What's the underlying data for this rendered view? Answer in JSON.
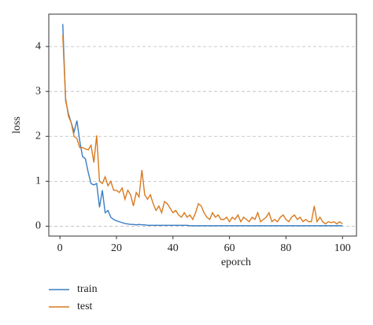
{
  "chart_data": {
    "type": "line",
    "xlabel": "eporch",
    "ylabel": "loss",
    "x": [
      1,
      2,
      3,
      4,
      5,
      6,
      7,
      8,
      9,
      10,
      11,
      12,
      13,
      14,
      15,
      16,
      17,
      18,
      19,
      20,
      21,
      22,
      23,
      24,
      25,
      26,
      27,
      28,
      29,
      30,
      31,
      32,
      33,
      34,
      35,
      36,
      37,
      38,
      39,
      40,
      41,
      42,
      43,
      44,
      45,
      46,
      47,
      48,
      49,
      50,
      51,
      52,
      53,
      54,
      55,
      56,
      57,
      58,
      59,
      60,
      61,
      62,
      63,
      64,
      65,
      66,
      67,
      68,
      69,
      70,
      71,
      72,
      73,
      74,
      75,
      76,
      77,
      78,
      79,
      80,
      81,
      82,
      83,
      84,
      85,
      86,
      87,
      88,
      89,
      90,
      91,
      92,
      93,
      94,
      95,
      96,
      97,
      98,
      99,
      100
    ],
    "series": [
      {
        "name": "train",
        "color": "#3a7dc4",
        "values": [
          4.5,
          2.8,
          2.5,
          2.3,
          2.1,
          2.35,
          1.9,
          1.55,
          1.5,
          1.2,
          0.95,
          0.92,
          0.95,
          0.42,
          0.8,
          0.3,
          0.35,
          0.2,
          0.15,
          0.12,
          0.1,
          0.08,
          0.06,
          0.05,
          0.04,
          0.04,
          0.03,
          0.04,
          0.03,
          0.03,
          0.02,
          0.02,
          0.02,
          0.02,
          0.02,
          0.02,
          0.02,
          0.02,
          0.02,
          0.02,
          0.02,
          0.02,
          0.02,
          0.02,
          0.02,
          0.01,
          0.01,
          0.01,
          0.01,
          0.01,
          0.01,
          0.01,
          0.01,
          0.01,
          0.01,
          0.01,
          0.01,
          0.01,
          0.01,
          0.01,
          0.01,
          0.01,
          0.01,
          0.01,
          0.01,
          0.01,
          0.01,
          0.01,
          0.01,
          0.01,
          0.01,
          0.01,
          0.01,
          0.01,
          0.01,
          0.01,
          0.01,
          0.01,
          0.01,
          0.01,
          0.01,
          0.01,
          0.01,
          0.01,
          0.01,
          0.01,
          0.01,
          0.01,
          0.01,
          0.01,
          0.01,
          0.01,
          0.01,
          0.01,
          0.01,
          0.01,
          0.01,
          0.01,
          0.01,
          0.01
        ]
      },
      {
        "name": "test",
        "color": "#d97a1f",
        "values": [
          4.25,
          2.85,
          2.45,
          2.3,
          2.0,
          1.95,
          1.75,
          1.75,
          1.72,
          1.7,
          1.8,
          1.42,
          2.02,
          1.0,
          0.95,
          1.1,
          0.9,
          1.0,
          0.8,
          0.8,
          0.75,
          0.85,
          0.6,
          0.8,
          0.7,
          0.45,
          0.75,
          0.65,
          1.25,
          0.7,
          0.6,
          0.7,
          0.5,
          0.35,
          0.45,
          0.3,
          0.55,
          0.5,
          0.4,
          0.3,
          0.35,
          0.25,
          0.2,
          0.3,
          0.2,
          0.25,
          0.15,
          0.3,
          0.5,
          0.45,
          0.3,
          0.2,
          0.15,
          0.3,
          0.2,
          0.25,
          0.15,
          0.15,
          0.2,
          0.1,
          0.2,
          0.15,
          0.25,
          0.1,
          0.2,
          0.15,
          0.1,
          0.2,
          0.15,
          0.3,
          0.1,
          0.15,
          0.2,
          0.3,
          0.1,
          0.15,
          0.1,
          0.2,
          0.25,
          0.15,
          0.1,
          0.2,
          0.25,
          0.15,
          0.2,
          0.1,
          0.15,
          0.1,
          0.1,
          0.45,
          0.1,
          0.2,
          0.1,
          0.05,
          0.1,
          0.08,
          0.1,
          0.05,
          0.1,
          0.05
        ]
      }
    ],
    "xlim": [
      -3.95,
      104.95
    ],
    "xticks": [
      0,
      20,
      40,
      60,
      80,
      100
    ],
    "ylim": [
      -0.22,
      4.72
    ],
    "yticks": [
      0,
      1,
      2,
      3,
      4
    ],
    "grid": true,
    "legend": "below"
  }
}
